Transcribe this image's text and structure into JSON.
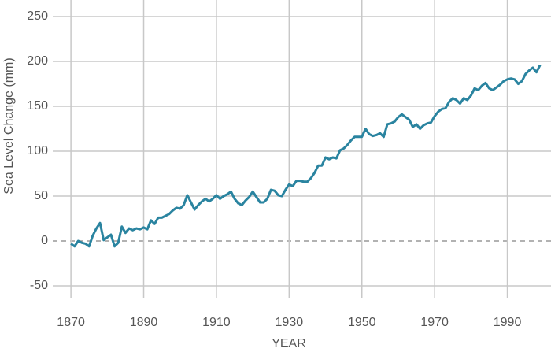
{
  "chart_data": {
    "type": "line",
    "x_label": "YEAR",
    "y_label": "Sea Level Change (mm)",
    "xlim": [
      1865,
      2002
    ],
    "ylim": [
      -55,
      255
    ],
    "xticks": [
      1870,
      1890,
      1910,
      1930,
      1950,
      1970,
      1990
    ],
    "yticks": [
      -50,
      0,
      50,
      100,
      150,
      200,
      250
    ],
    "grid": true,
    "zero_line": "dashed",
    "x": [
      1870,
      1871,
      1872,
      1873,
      1874,
      1875,
      1876,
      1877,
      1878,
      1879,
      1880,
      1881,
      1882,
      1883,
      1884,
      1885,
      1886,
      1887,
      1888,
      1889,
      1890,
      1891,
      1892,
      1893,
      1894,
      1895,
      1896,
      1897,
      1898,
      1899,
      1900,
      1901,
      1902,
      1903,
      1904,
      1905,
      1906,
      1907,
      1908,
      1909,
      1910,
      1911,
      1912,
      1913,
      1914,
      1915,
      1916,
      1917,
      1918,
      1919,
      1920,
      1921,
      1922,
      1923,
      1924,
      1925,
      1926,
      1927,
      1928,
      1929,
      1930,
      1931,
      1932,
      1933,
      1934,
      1935,
      1936,
      1937,
      1938,
      1939,
      1940,
      1941,
      1942,
      1943,
      1944,
      1945,
      1946,
      1947,
      1948,
      1949,
      1950,
      1951,
      1952,
      1953,
      1954,
      1955,
      1956,
      1957,
      1958,
      1959,
      1960,
      1961,
      1962,
      1963,
      1964,
      1965,
      1966,
      1967,
      1968,
      1969,
      1970,
      1971,
      1972,
      1973,
      1974,
      1975,
      1976,
      1977,
      1978,
      1979,
      1980,
      1981,
      1982,
      1983,
      1984,
      1985,
      1986,
      1987,
      1988,
      1989,
      1990,
      1991,
      1992,
      1993,
      1994,
      1995,
      1996,
      1997,
      1998,
      1999
    ],
    "series": [
      {
        "color": "#2a84a0",
        "values": [
          -3,
          -6,
          0,
          -2,
          -3,
          -6,
          6,
          14,
          20,
          1,
          4,
          7,
          -6,
          -2,
          16,
          9,
          14,
          12,
          14,
          13,
          15,
          13,
          23,
          19,
          26,
          26,
          28,
          30,
          34,
          37,
          36,
          40,
          51,
          43,
          35,
          40,
          44,
          47,
          44,
          47,
          51,
          47,
          50,
          52,
          55,
          47,
          42,
          40,
          45,
          49,
          55,
          49,
          43,
          43,
          47,
          57,
          56,
          51,
          50,
          57,
          63,
          61,
          67,
          67,
          66,
          66,
          70,
          76,
          84,
          84,
          93,
          91,
          93,
          92,
          101,
          103,
          107,
          112,
          116,
          116,
          116,
          125,
          119,
          117,
          118,
          120,
          116,
          130,
          131,
          133,
          138,
          141,
          138,
          135,
          127,
          130,
          125,
          129,
          131,
          132,
          139,
          144,
          147,
          148,
          155,
          159,
          157,
          153,
          159,
          157,
          162,
          170,
          168,
          173,
          176,
          170,
          168,
          171,
          174,
          178,
          180,
          181,
          180,
          175,
          178,
          186,
          190,
          193,
          188,
          196
        ]
      }
    ]
  }
}
